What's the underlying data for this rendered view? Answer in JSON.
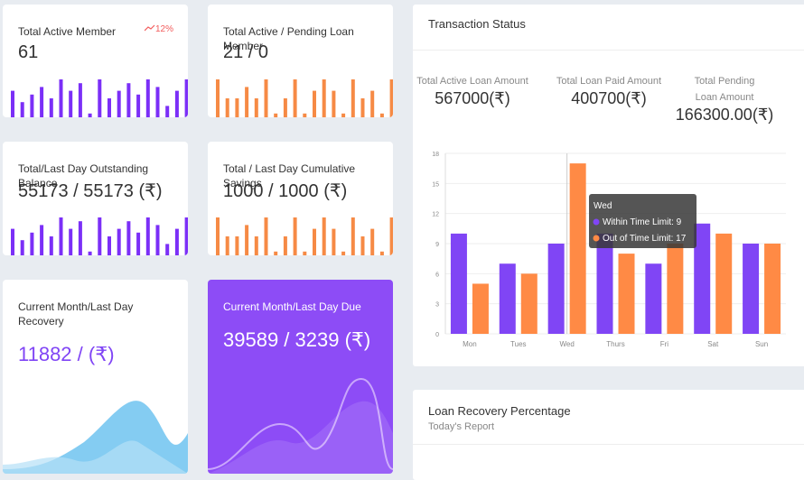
{
  "cards": [
    {
      "title": "Total Active Member",
      "value": "61",
      "badge": "12%",
      "sparkline": {
        "type": "bar",
        "color": "#7b2ff7",
        "ylim": [
          0,
          10
        ],
        "values": [
          7,
          4,
          6,
          8,
          5,
          10,
          7,
          9,
          1,
          10,
          5,
          7,
          9,
          6,
          10,
          8,
          3,
          7,
          10
        ]
      }
    },
    {
      "title": "Total Active / Pending Loan Member",
      "value": "21 / 0",
      "sparkline": {
        "type": "bar",
        "color": "#f68a45",
        "ylim": [
          0,
          10
        ],
        "values": [
          10,
          5,
          5,
          8,
          5,
          10,
          1,
          5,
          10,
          1,
          7,
          10,
          7,
          1,
          10,
          5,
          7,
          1,
          10
        ]
      }
    },
    {
      "title": "Total/Last Day Outstanding Balance",
      "value": "55173 / 55173 (₹)",
      "sparkline": {
        "type": "bar",
        "color": "#7b2ff7",
        "ylim": [
          0,
          10
        ],
        "values": [
          7,
          4,
          6,
          8,
          5,
          10,
          7,
          9,
          1,
          10,
          5,
          7,
          9,
          6,
          10,
          8,
          3,
          7,
          10
        ]
      }
    },
    {
      "title": "Total / Last Day Cumulative Savings",
      "value": "1000 / 1000 (₹)",
      "sparkline": {
        "type": "bar",
        "color": "#f68a45",
        "ylim": [
          0,
          10
        ],
        "values": [
          10,
          5,
          5,
          8,
          5,
          10,
          1,
          5,
          10,
          1,
          7,
          10,
          7,
          1,
          10,
          5,
          7,
          1,
          10
        ]
      }
    },
    {
      "title": "Current Month/Last Day Recovery",
      "value": "11882 /  (₹)"
    },
    {
      "title": "Current Month/Last Day Due",
      "value": "39589 / 3239 (₹)"
    }
  ],
  "transaction_status": {
    "title": "Transaction Status",
    "stats": [
      {
        "label": "Total Active Loan Amount",
        "value": "567000(₹)"
      },
      {
        "label": "Total Loan Paid Amount",
        "value": "400700(₹)"
      },
      {
        "label": "Total Pending Loan Amount",
        "value": "166300.00(₹)"
      }
    ],
    "chart_data": {
      "type": "bar",
      "categories": [
        "Mon",
        "Tues",
        "Wed",
        "Thurs",
        "Fri",
        "Sat",
        "Sun"
      ],
      "series": [
        {
          "name": "Within Time Limit",
          "color": "#8045f5",
          "values": [
            10,
            7,
            9,
            10,
            7,
            11,
            9
          ]
        },
        {
          "name": "Out of Time Limit",
          "color": "#ff8a45",
          "values": [
            5,
            6,
            17,
            8,
            9,
            10,
            9
          ]
        }
      ],
      "ylim": [
        0,
        18
      ],
      "yticks": [
        0,
        3,
        6,
        9,
        12,
        15,
        18
      ],
      "grid": true,
      "tooltip": {
        "title": "Wed",
        "lines": [
          "Within Time Limit: 9",
          "Out of Time Limit: 17"
        ]
      }
    }
  },
  "loan_recovery": {
    "title": "Loan Recovery Percentage",
    "subtitle": "Today's Report"
  }
}
